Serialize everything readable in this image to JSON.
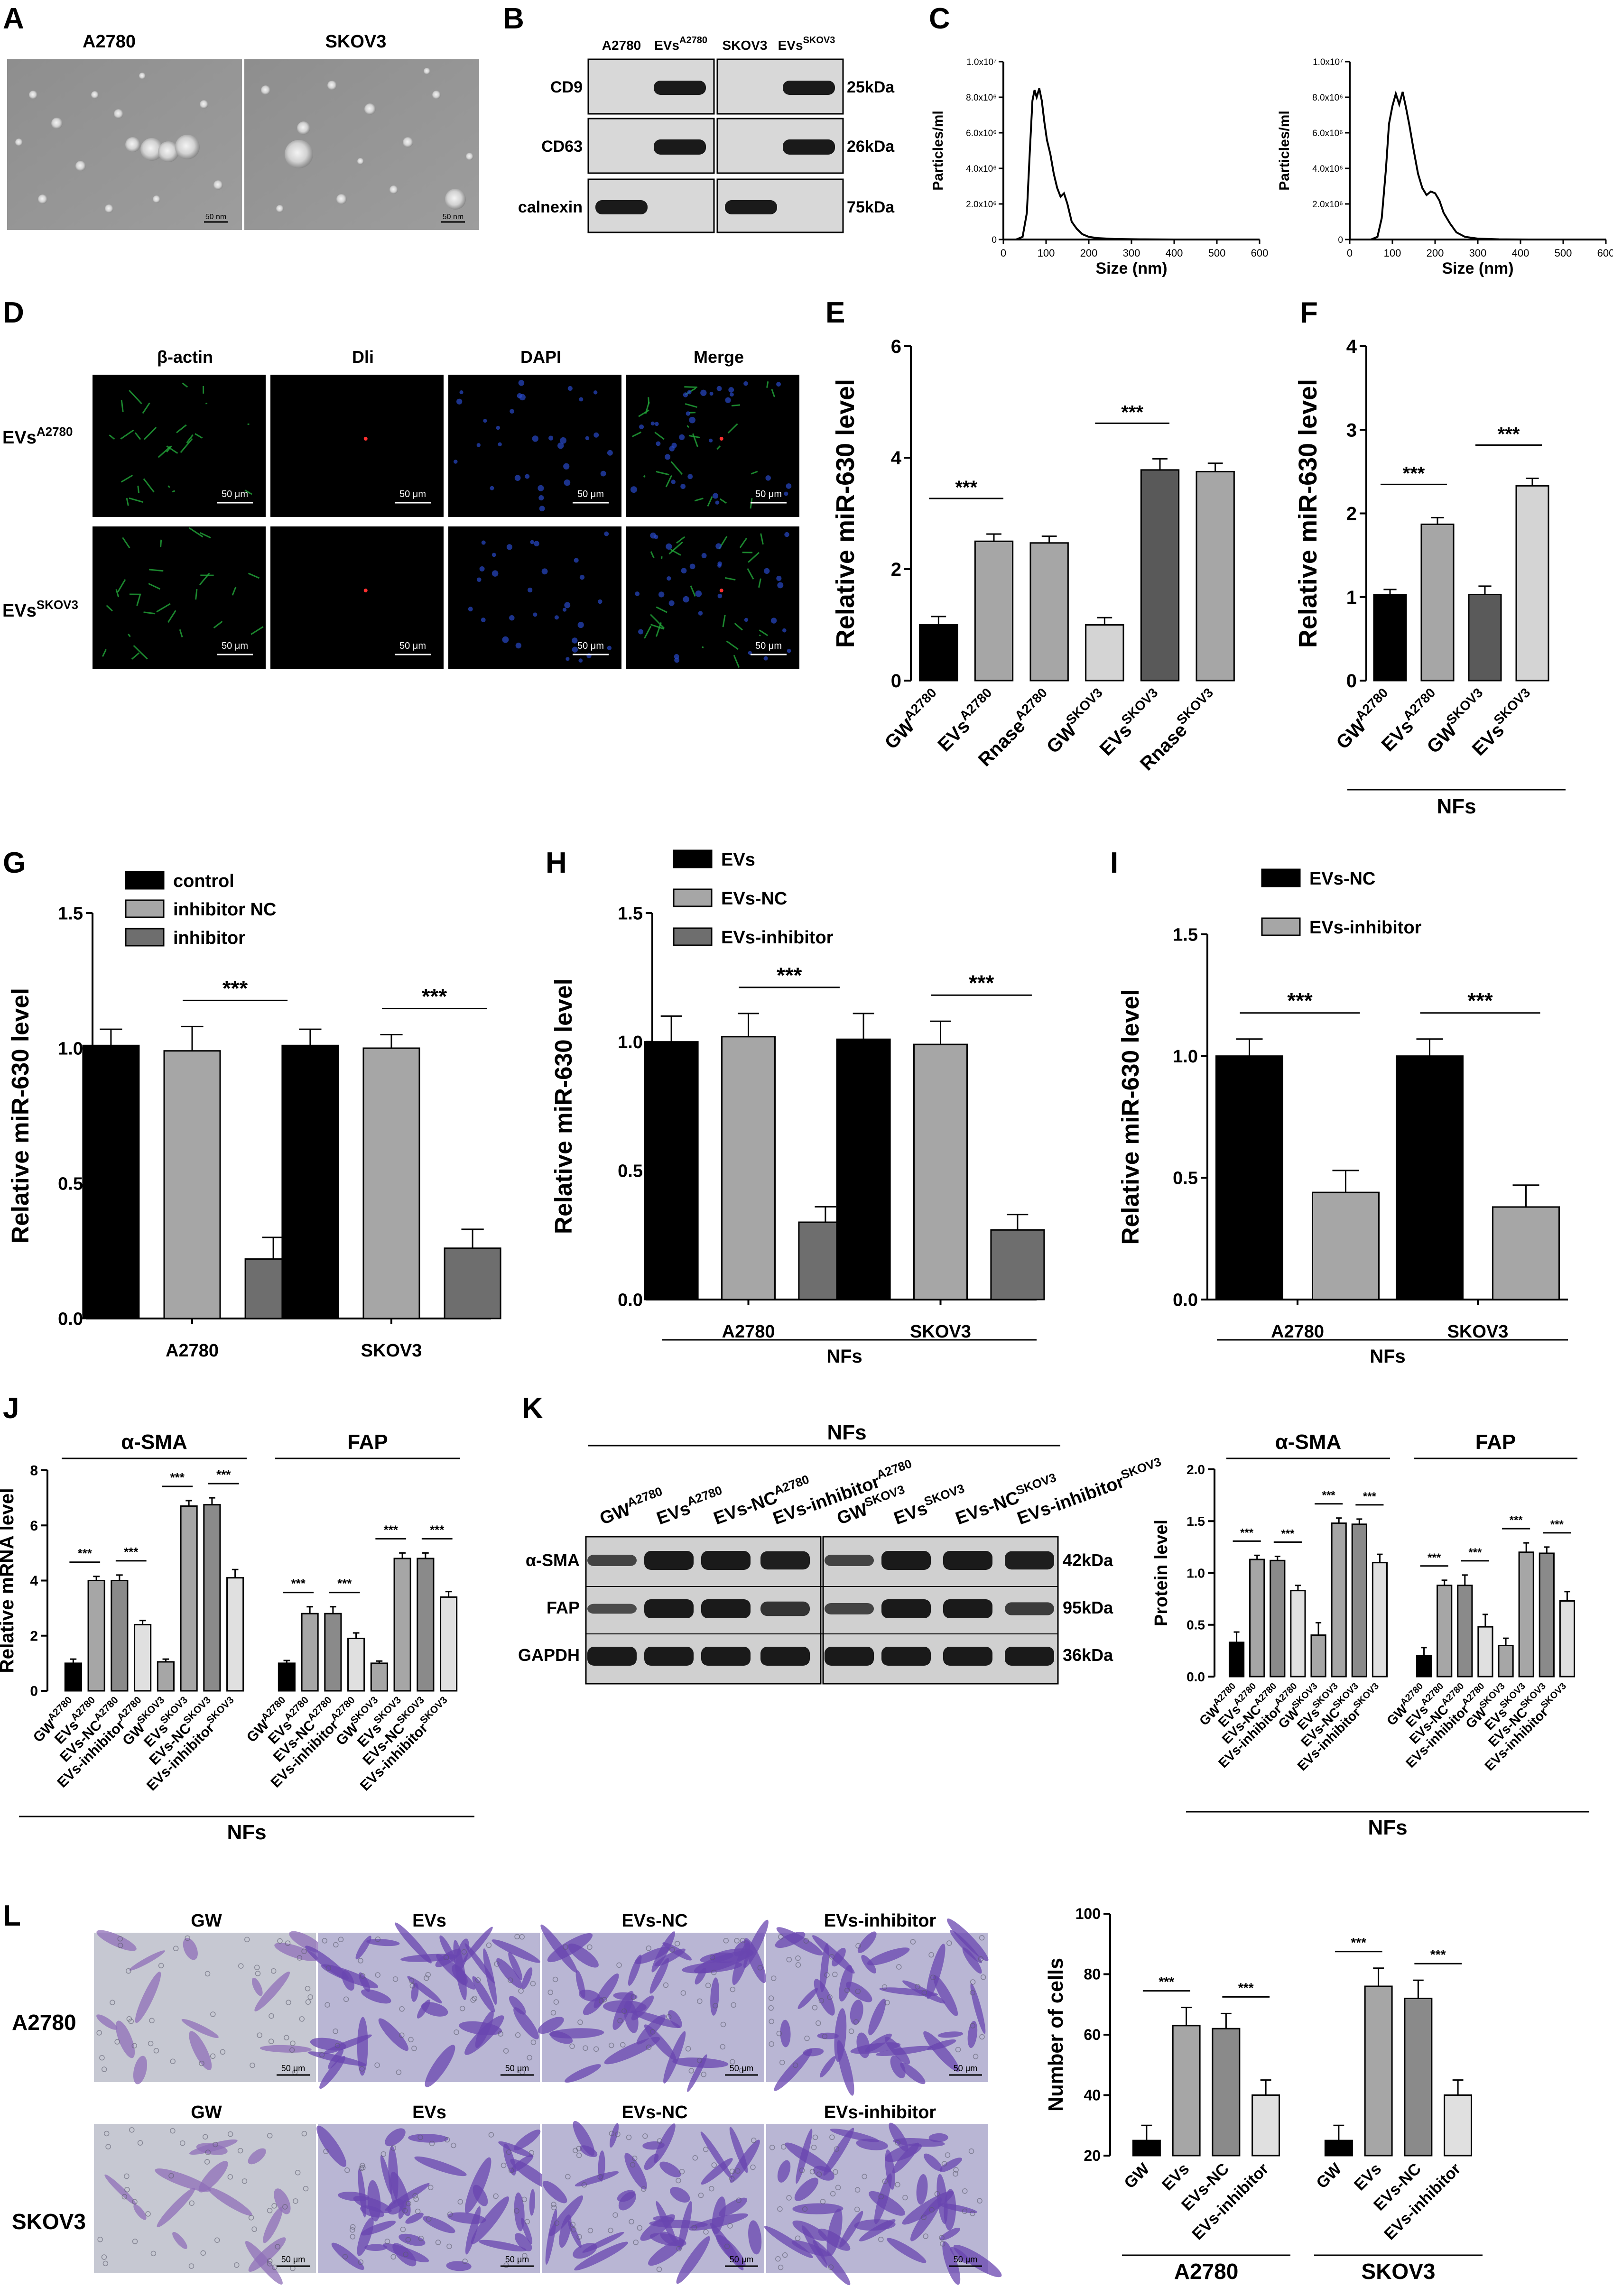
{
  "panel_labels": {
    "A": "A",
    "B": "B",
    "C": "C",
    "D": "D",
    "E": "E",
    "F": "F",
    "G": "G",
    "H": "H",
    "I": "I",
    "J": "J",
    "K": "K",
    "L": "L"
  },
  "A": {
    "titles": [
      "A2780",
      "SKOV3"
    ],
    "scale": "50 nm"
  },
  "B": {
    "cols": [
      "A2780",
      "EVs",
      "A2780",
      "SKOV3",
      "EVs",
      "SKOV3"
    ],
    "rows": [
      "CD9",
      "CD63",
      "calnexin"
    ],
    "sizes": [
      "25kDa",
      "26kDa",
      "75kDa"
    ]
  },
  "C": {
    "ylabel": "Particles/ml",
    "xlabel": "Size (nm)",
    "yticks": [
      "1.0x10⁷",
      "8.0x10⁶",
      "6.0x10⁶",
      "4.0x10⁶",
      "2.0x10⁶",
      "0"
    ],
    "xticks": [
      "0",
      "100",
      "200",
      "300",
      "400",
      "500",
      "600"
    ]
  },
  "D": {
    "cols": [
      "β-actin",
      "Dli",
      "DAPI",
      "Merge"
    ],
    "row1": [
      "EVs",
      "A2780"
    ],
    "row2": [
      "EVs",
      "SKOV3"
    ],
    "scale": "50 μm"
  },
  "L_img": {
    "cols": [
      "GW",
      "EVs",
      "EVs-NC",
      "EVs-inhibitor"
    ],
    "rows": [
      "A2780",
      "SKOV3"
    ],
    "scale": "50 μm"
  },
  "K_blot": {
    "header": "NFs",
    "lanes": [
      [
        "GW",
        "A2780"
      ],
      [
        "EVs",
        "A2780"
      ],
      [
        "EVs-NC",
        "A2780"
      ],
      [
        "EVs-inhibitor",
        "A2780"
      ],
      [
        "GW",
        "SKOV3"
      ],
      [
        "EVs",
        "SKOV3"
      ],
      [
        "EVs-NC",
        "SKOV3"
      ],
      [
        "EVs-inhibitor",
        "SKOV3"
      ]
    ],
    "rows": [
      "α-SMA",
      "FAP",
      "GAPDH"
    ],
    "sizes": [
      "42kDa",
      "95kDa",
      "36kDa"
    ]
  },
  "stat": "***",
  "chart_data": [
    {
      "id": "C1",
      "type": "line",
      "xlabel": "Size (nm)",
      "ylabel": "Particles/ml",
      "xlim": [
        0,
        600
      ],
      "ylim": [
        0,
        10000000
      ],
      "x": [
        30,
        45,
        55,
        62,
        68,
        73,
        78,
        84,
        90,
        96,
        102,
        110,
        118,
        126,
        134,
        142,
        150,
        160,
        172,
        185,
        200,
        220,
        260,
        320,
        400,
        500,
        600
      ],
      "y": [
        0,
        150000,
        1500000,
        5000000,
        7800000,
        8400000,
        8000000,
        8500000,
        7800000,
        6600000,
        5600000,
        4800000,
        3700000,
        2900000,
        2400000,
        2600000,
        2000000,
        1000000,
        600000,
        300000,
        150000,
        80000,
        30000,
        10000,
        0,
        0,
        0
      ]
    },
    {
      "id": "C2",
      "type": "line",
      "xlabel": "Size (nm)",
      "ylabel": "Particles/ml",
      "xlim": [
        0,
        600
      ],
      "ylim": [
        0,
        10000000
      ],
      "x": [
        50,
        65,
        75,
        85,
        92,
        100,
        108,
        116,
        124,
        132,
        140,
        150,
        160,
        170,
        180,
        190,
        200,
        210,
        220,
        235,
        250,
        270,
        300,
        350,
        420,
        500,
        600
      ],
      "y": [
        0,
        150000,
        1200000,
        4000000,
        6500000,
        7500000,
        8200000,
        7600000,
        8300000,
        7400000,
        6400000,
        5000000,
        3700000,
        2900000,
        2500000,
        2700000,
        2600000,
        2200000,
        1500000,
        900000,
        400000,
        150000,
        50000,
        10000,
        0,
        0,
        0
      ]
    },
    {
      "id": "E",
      "type": "bar",
      "ylabel": "Relative miR-630 level",
      "ylim": [
        0,
        6
      ],
      "yticks": [
        0,
        2,
        4,
        6
      ],
      "categories": [
        [
          "GW",
          "A2780"
        ],
        [
          "EVs",
          "A2780"
        ],
        [
          "Rnase",
          "A2780"
        ],
        [
          "GW",
          "SKOV3"
        ],
        [
          "EVs",
          "SKOV3"
        ],
        [
          "Rnase",
          "SKOV3"
        ]
      ],
      "values": [
        1.0,
        2.5,
        2.47,
        1.0,
        3.78,
        3.75
      ],
      "errors": [
        0.15,
        0.13,
        0.12,
        0.13,
        0.2,
        0.15
      ],
      "colors": [
        "#000000",
        "#a6a6a6",
        "#a6a6a6",
        "#d4d4d4",
        "#595959",
        "#a6a6a6"
      ],
      "sig": [
        [
          0,
          1
        ],
        [
          3,
          4
        ]
      ]
    },
    {
      "id": "F",
      "type": "bar",
      "ylabel": "Relative miR-630 level",
      "ylim": [
        0,
        4
      ],
      "yticks": [
        0,
        1,
        2,
        3,
        4
      ],
      "categories": [
        [
          "GW",
          "A2780"
        ],
        [
          "EVs",
          "A2780"
        ],
        [
          "GW",
          "SKOV3"
        ],
        [
          "EVs",
          "SKOV3"
        ]
      ],
      "values": [
        1.03,
        1.87,
        1.03,
        2.33
      ],
      "errors": [
        0.06,
        0.08,
        0.1,
        0.09
      ],
      "colors": [
        "#000000",
        "#a6a6a6",
        "#5a5a5a",
        "#d4d4d4"
      ],
      "sig": [
        [
          0,
          1
        ],
        [
          2,
          3
        ]
      ],
      "group": "NFs"
    },
    {
      "id": "G",
      "type": "bar",
      "ylabel": "Relative miR-630 level",
      "ylim": [
        0,
        1.5
      ],
      "yticks": [
        "0.0",
        "0.5",
        "1.0",
        "1.5"
      ],
      "categories": [
        "A2780",
        "SKOV3"
      ],
      "series": [
        {
          "name": "control",
          "values": [
            1.01,
            1.01
          ],
          "errors": [
            0.06,
            0.06
          ],
          "color": "#000000"
        },
        {
          "name": "inhibitor NC",
          "values": [
            0.99,
            1.0
          ],
          "errors": [
            0.09,
            0.05
          ],
          "color": "#a6a6a6"
        },
        {
          "name": "inhibitor",
          "values": [
            0.22,
            0.26
          ],
          "errors": [
            0.08,
            0.07
          ],
          "color": "#6e6e6e"
        }
      ],
      "sig": "1-2"
    },
    {
      "id": "H",
      "type": "bar",
      "ylabel": "Relative miR-630 level",
      "ylim": [
        0,
        1.5
      ],
      "yticks": [
        "0.0",
        "0.5",
        "1.0",
        "1.5"
      ],
      "categories": [
        "A2780",
        "SKOV3"
      ],
      "series": [
        {
          "name": "EVs",
          "values": [
            1.0,
            1.01
          ],
          "errors": [
            0.1,
            0.1
          ],
          "color": "#000000"
        },
        {
          "name": "EVs-NC",
          "values": [
            1.02,
            0.99
          ],
          "errors": [
            0.09,
            0.09
          ],
          "color": "#a6a6a6"
        },
        {
          "name": "EVs-inhibitor",
          "values": [
            0.3,
            0.27
          ],
          "errors": [
            0.06,
            0.06
          ],
          "color": "#6e6e6e"
        }
      ],
      "sig": "1-2",
      "group": "NFs"
    },
    {
      "id": "I",
      "type": "bar",
      "ylabel": "Relative miR-630 level",
      "ylim": [
        0,
        1.5
      ],
      "yticks": [
        "0.0",
        "0.5",
        "1.0",
        "1.5"
      ],
      "categories": [
        "A2780",
        "SKOV3"
      ],
      "series": [
        {
          "name": "EVs-NC",
          "values": [
            1.0,
            1.0
          ],
          "errors": [
            0.07,
            0.07
          ],
          "color": "#000000"
        },
        {
          "name": "EVs-inhibitor",
          "values": [
            0.44,
            0.38
          ],
          "errors": [
            0.09,
            0.09
          ],
          "color": "#a6a6a6"
        }
      ],
      "sig": "0-1",
      "group": "NFs"
    },
    {
      "id": "J",
      "type": "bar",
      "ylabel": "Relative mRNA level",
      "ylim": [
        0,
        8
      ],
      "yticks": [
        0,
        2,
        4,
        6,
        8
      ],
      "groups": [
        "α-SMA",
        "FAP"
      ],
      "categories": [
        [
          "GW",
          "A2780"
        ],
        [
          "EVs",
          "A2780"
        ],
        [
          "EVs-NC",
          "A2780"
        ],
        [
          "EVs-inhibitor",
          "A2780"
        ],
        [
          "GW",
          "SKOV3"
        ],
        [
          "EVs",
          "SKOV3"
        ],
        [
          "EVs-NC",
          "SKOV3"
        ],
        [
          "EVs-inhibitor",
          "SKOV3"
        ]
      ],
      "values": [
        [
          1.0,
          4.0,
          4.0,
          2.4,
          1.05,
          6.7,
          6.75,
          4.1
        ],
        [
          1.0,
          2.8,
          2.8,
          1.9,
          1.0,
          4.8,
          4.8,
          3.4
        ]
      ],
      "errors": [
        [
          0.15,
          0.15,
          0.2,
          0.15,
          0.1,
          0.2,
          0.25,
          0.3
        ],
        [
          0.1,
          0.25,
          0.25,
          0.2,
          0.08,
          0.2,
          0.2,
          0.2
        ]
      ],
      "colors": [
        "#000000",
        "#a6a6a6",
        "#8a8a8a",
        "#e0e0e0",
        "#a6a6a6",
        "#a6a6a6",
        "#8a8a8a",
        "#e0e0e0"
      ],
      "sig": [
        [
          0,
          1
        ],
        [
          2,
          3
        ],
        [
          4,
          5
        ],
        [
          6,
          7
        ]
      ],
      "group": "NFs"
    },
    {
      "id": "K",
      "type": "bar",
      "ylabel": "Protein level",
      "ylim": [
        0,
        2.0
      ],
      "yticks": [
        "0.0",
        "0.5",
        "1.0",
        "1.5",
        "2.0"
      ],
      "groups": [
        "α-SMA",
        "FAP"
      ],
      "categories": [
        [
          "GW",
          "A2780"
        ],
        [
          "EVs",
          "A2780"
        ],
        [
          "EVs-NC",
          "A2780"
        ],
        [
          "EVs-inhibitor",
          "A2780"
        ],
        [
          "GW",
          "SKOV3"
        ],
        [
          "EVs",
          "SKOV3"
        ],
        [
          "EVs-NC",
          "SKOV3"
        ],
        [
          "EVs-inhibitor",
          "SKOV3"
        ]
      ],
      "values": [
        [
          0.33,
          1.13,
          1.12,
          0.83,
          0.4,
          1.48,
          1.47,
          1.1
        ],
        [
          0.2,
          0.88,
          0.88,
          0.48,
          0.3,
          1.2,
          1.19,
          0.73
        ]
      ],
      "errors": [
        [
          0.1,
          0.04,
          0.04,
          0.05,
          0.12,
          0.05,
          0.05,
          0.08
        ],
        [
          0.08,
          0.05,
          0.1,
          0.12,
          0.07,
          0.09,
          0.06,
          0.09
        ]
      ],
      "colors": [
        "#000000",
        "#a6a6a6",
        "#8a8a8a",
        "#e0e0e0",
        "#a6a6a6",
        "#a6a6a6",
        "#8a8a8a",
        "#e0e0e0"
      ],
      "sig": [
        [
          0,
          1
        ],
        [
          2,
          3
        ],
        [
          4,
          5
        ],
        [
          6,
          7
        ]
      ],
      "group": "NFs"
    },
    {
      "id": "L",
      "type": "bar",
      "ylabel": "Number of cells",
      "ylim": [
        20,
        100
      ],
      "yticks": [
        20,
        40,
        60,
        80,
        100
      ],
      "groups": [
        "A2780",
        "SKOV3"
      ],
      "categories": [
        "GW",
        "EVs",
        "EVs-NC",
        "EVs-inhibitor"
      ],
      "values": [
        [
          25,
          63,
          62,
          40
        ],
        [
          25,
          76,
          72,
          40
        ]
      ],
      "errors": [
        [
          5,
          6,
          5,
          5
        ],
        [
          5,
          6,
          6,
          5
        ]
      ],
      "colors": [
        "#000000",
        "#a6a6a6",
        "#8a8a8a",
        "#e0e0e0"
      ],
      "sig": [
        [
          0,
          1
        ],
        [
          2,
          3
        ]
      ]
    }
  ]
}
